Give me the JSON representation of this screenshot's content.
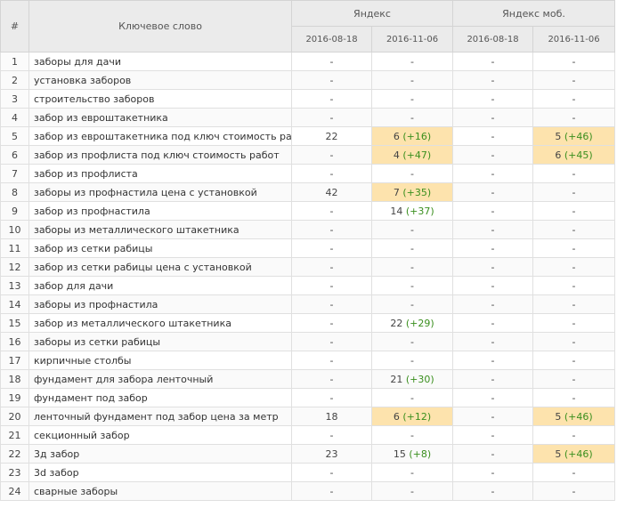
{
  "header": {
    "num": "#",
    "keyword": "Ключевое слово",
    "engine1": "Яндекс",
    "engine2": "Яндекс моб.",
    "dates": [
      "2016-08-18",
      "2016-11-06",
      "2016-08-18",
      "2016-11-06"
    ]
  },
  "rows": [
    {
      "n": "1",
      "kw": "заборы для дачи",
      "c": [
        {
          "v": "-"
        },
        {
          "v": "-"
        },
        {
          "v": "-"
        },
        {
          "v": "-"
        }
      ]
    },
    {
      "n": "2",
      "kw": "установка заборов",
      "c": [
        {
          "v": "-"
        },
        {
          "v": "-"
        },
        {
          "v": "-"
        },
        {
          "v": "-"
        }
      ]
    },
    {
      "n": "3",
      "kw": "строительство заборов",
      "c": [
        {
          "v": "-"
        },
        {
          "v": "-"
        },
        {
          "v": "-"
        },
        {
          "v": "-"
        }
      ]
    },
    {
      "n": "4",
      "kw": "забор из евроштакетника",
      "c": [
        {
          "v": "-"
        },
        {
          "v": "-"
        },
        {
          "v": "-"
        },
        {
          "v": "-"
        }
      ]
    },
    {
      "n": "5",
      "kw": "забор из евроштакетника под ключ стоимость работ",
      "c": [
        {
          "v": "22"
        },
        {
          "v": "6",
          "d": "(+16)",
          "hl": true
        },
        {
          "v": "-"
        },
        {
          "v": "5",
          "d": "(+46)",
          "hl": true
        }
      ]
    },
    {
      "n": "6",
      "kw": "забор из профлиста под ключ стоимость работ",
      "c": [
        {
          "v": "-"
        },
        {
          "v": "4",
          "d": "(+47)",
          "hl": true
        },
        {
          "v": "-"
        },
        {
          "v": "6",
          "d": "(+45)",
          "hl": true
        }
      ]
    },
    {
      "n": "7",
      "kw": "забор из профлиста",
      "c": [
        {
          "v": "-"
        },
        {
          "v": "-"
        },
        {
          "v": "-"
        },
        {
          "v": "-"
        }
      ]
    },
    {
      "n": "8",
      "kw": "заборы из профнастила цена с установкой",
      "c": [
        {
          "v": "42"
        },
        {
          "v": "7",
          "d": "(+35)",
          "hl": true
        },
        {
          "v": "-"
        },
        {
          "v": "-"
        }
      ]
    },
    {
      "n": "9",
      "kw": "забор из профнастила",
      "c": [
        {
          "v": "-"
        },
        {
          "v": "14",
          "d": "(+37)"
        },
        {
          "v": "-"
        },
        {
          "v": "-"
        }
      ]
    },
    {
      "n": "10",
      "kw": "заборы из металлического штакетника",
      "c": [
        {
          "v": "-"
        },
        {
          "v": "-"
        },
        {
          "v": "-"
        },
        {
          "v": "-"
        }
      ]
    },
    {
      "n": "11",
      "kw": "забор из сетки рабицы",
      "c": [
        {
          "v": "-"
        },
        {
          "v": "-"
        },
        {
          "v": "-"
        },
        {
          "v": "-"
        }
      ]
    },
    {
      "n": "12",
      "kw": "забор из сетки рабицы цена с установкой",
      "c": [
        {
          "v": "-"
        },
        {
          "v": "-"
        },
        {
          "v": "-"
        },
        {
          "v": "-"
        }
      ]
    },
    {
      "n": "13",
      "kw": "забор для дачи",
      "c": [
        {
          "v": "-"
        },
        {
          "v": "-"
        },
        {
          "v": "-"
        },
        {
          "v": "-"
        }
      ]
    },
    {
      "n": "14",
      "kw": "заборы из профнастила",
      "c": [
        {
          "v": "-"
        },
        {
          "v": "-"
        },
        {
          "v": "-"
        },
        {
          "v": "-"
        }
      ]
    },
    {
      "n": "15",
      "kw": "забор из металлического штакетника",
      "c": [
        {
          "v": "-"
        },
        {
          "v": "22",
          "d": "(+29)"
        },
        {
          "v": "-"
        },
        {
          "v": "-"
        }
      ]
    },
    {
      "n": "16",
      "kw": "заборы из сетки рабицы",
      "c": [
        {
          "v": "-"
        },
        {
          "v": "-"
        },
        {
          "v": "-"
        },
        {
          "v": "-"
        }
      ]
    },
    {
      "n": "17",
      "kw": "кирпичные столбы",
      "c": [
        {
          "v": "-"
        },
        {
          "v": "-"
        },
        {
          "v": "-"
        },
        {
          "v": "-"
        }
      ]
    },
    {
      "n": "18",
      "kw": "фундамент для забора ленточный",
      "c": [
        {
          "v": "-"
        },
        {
          "v": "21",
          "d": "(+30)"
        },
        {
          "v": "-"
        },
        {
          "v": "-"
        }
      ]
    },
    {
      "n": "19",
      "kw": "фундамент под забор",
      "c": [
        {
          "v": "-"
        },
        {
          "v": "-"
        },
        {
          "v": "-"
        },
        {
          "v": "-"
        }
      ]
    },
    {
      "n": "20",
      "kw": "ленточный фундамент под забор цена за метр",
      "c": [
        {
          "v": "18"
        },
        {
          "v": "6",
          "d": "(+12)",
          "hl": true
        },
        {
          "v": "-"
        },
        {
          "v": "5",
          "d": "(+46)",
          "hl": true
        }
      ]
    },
    {
      "n": "21",
      "kw": "секционный забор",
      "c": [
        {
          "v": "-"
        },
        {
          "v": "-"
        },
        {
          "v": "-"
        },
        {
          "v": "-"
        }
      ]
    },
    {
      "n": "22",
      "kw": "3д забор",
      "c": [
        {
          "v": "23"
        },
        {
          "v": "15",
          "d": "(+8)"
        },
        {
          "v": "-"
        },
        {
          "v": "5",
          "d": "(+46)",
          "hl": true
        }
      ]
    },
    {
      "n": "23",
      "kw": "3d забор",
      "c": [
        {
          "v": "-"
        },
        {
          "v": "-"
        },
        {
          "v": "-"
        },
        {
          "v": "-"
        }
      ]
    },
    {
      "n": "24",
      "kw": "сварные заборы",
      "c": [
        {
          "v": "-"
        },
        {
          "v": "-"
        },
        {
          "v": "-"
        },
        {
          "v": "-"
        }
      ]
    }
  ],
  "colors": {
    "highlight": "#fde3ad",
    "delta": "#3a8f1e",
    "header_bg": "#ebebeb"
  }
}
